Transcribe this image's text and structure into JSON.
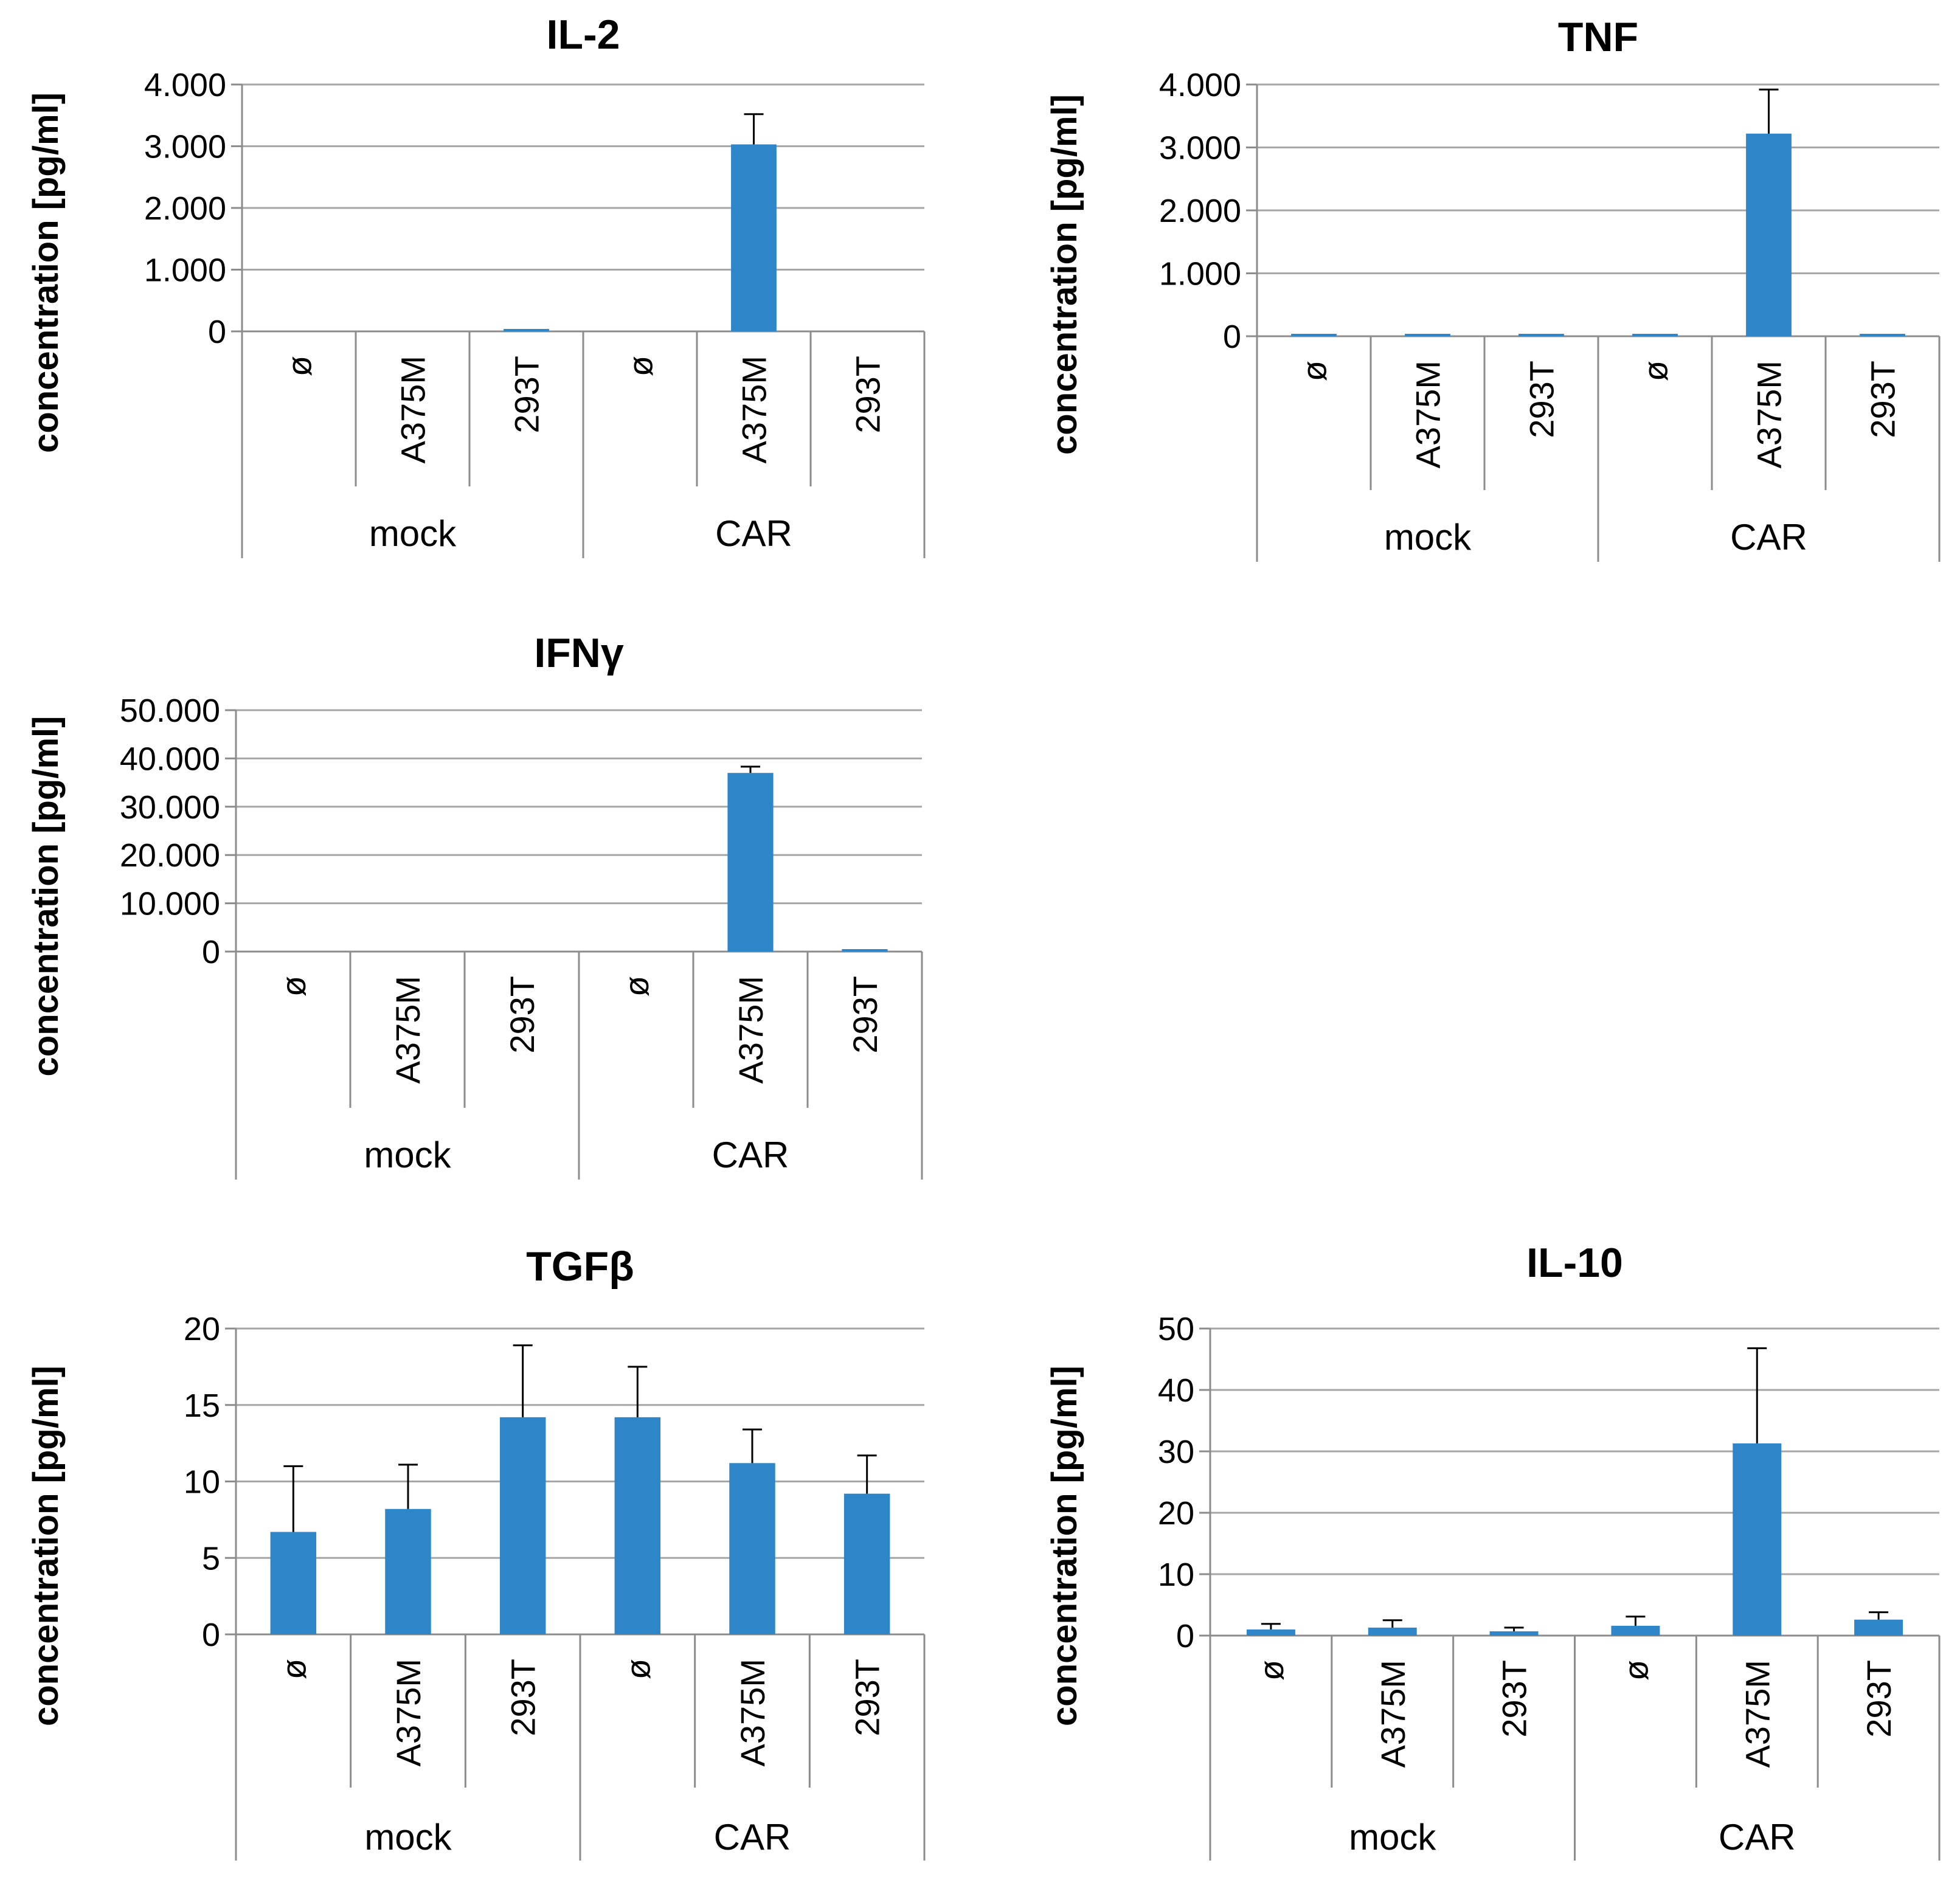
{
  "chart_data": [
    {
      "type": "bar",
      "title": "IL-2",
      "ylabel": "concentration [pg/ml]",
      "xlabel": "",
      "ylim": [
        0,
        4000
      ],
      "yticks": [
        0,
        1000,
        2000,
        3000,
        4000
      ],
      "ytick_labels": [
        "0",
        "1.000",
        "2.000",
        "3.000",
        "4.000"
      ],
      "categories": [
        "ø",
        "A375M",
        "293T",
        "ø",
        "A375M",
        "293T"
      ],
      "groups": [
        {
          "label": "mock",
          "size": 3
        },
        {
          "label": "CAR",
          "size": 3
        }
      ],
      "values": [
        0,
        0,
        20,
        0,
        3030,
        0
      ],
      "errors": [
        0,
        0,
        0,
        0,
        490,
        0
      ],
      "bar_color": "#2e86c8",
      "grid": true
    },
    {
      "type": "bar",
      "title": "TNF",
      "ylabel": "concentration [pg/ml]",
      "xlabel": "",
      "ylim": [
        0,
        4000
      ],
      "yticks": [
        0,
        1000,
        2000,
        3000,
        4000
      ],
      "ytick_labels": [
        "0",
        "1.000",
        "2.000",
        "3.000",
        "4.000"
      ],
      "categories": [
        "ø",
        "A375M",
        "293T",
        "ø",
        "A375M",
        "293T"
      ],
      "groups": [
        {
          "label": "mock",
          "size": 3
        },
        {
          "label": "CAR",
          "size": 3
        }
      ],
      "values": [
        20,
        20,
        20,
        20,
        3220,
        20
      ],
      "errors": [
        0,
        0,
        0,
        0,
        700,
        0
      ],
      "bar_color": "#2e86c8",
      "grid": true
    },
    {
      "type": "bar",
      "title": "IFNγ",
      "ylabel": "concentration [pg/ml]",
      "xlabel": "",
      "ylim": [
        0,
        50000
      ],
      "yticks": [
        0,
        10000,
        20000,
        30000,
        40000,
        50000
      ],
      "ytick_labels": [
        "0",
        "10.000",
        "20.000",
        "30.000",
        "40.000",
        "50.000"
      ],
      "categories": [
        "ø",
        "A375M",
        "293T",
        "ø",
        "A375M",
        "293T"
      ],
      "groups": [
        {
          "label": "mock",
          "size": 3
        },
        {
          "label": "CAR",
          "size": 3
        }
      ],
      "values": [
        0,
        0,
        0,
        0,
        37000,
        200
      ],
      "errors": [
        0,
        0,
        0,
        0,
        1300,
        0
      ],
      "bar_color": "#2e86c8",
      "grid": true
    },
    {
      "type": "bar",
      "title": "TGFβ",
      "ylabel": "concentration [pg/ml]",
      "xlabel": "",
      "ylim": [
        0,
        20
      ],
      "yticks": [
        0,
        5,
        10,
        15,
        20
      ],
      "ytick_labels": [
        "0",
        "5",
        "10",
        "15",
        "20"
      ],
      "categories": [
        "ø",
        "A375M",
        "293T",
        "ø",
        "A375M",
        "293T"
      ],
      "groups": [
        {
          "label": "mock",
          "size": 3
        },
        {
          "label": "CAR",
          "size": 3
        }
      ],
      "values": [
        6.7,
        8.2,
        14.2,
        14.2,
        11.2,
        9.2
      ],
      "errors": [
        4.3,
        2.9,
        4.7,
        3.3,
        2.2,
        2.5
      ],
      "bar_color": "#2e86c8",
      "grid": true
    },
    {
      "type": "bar",
      "title": "IL-10",
      "ylabel": "concentration [pg/ml]",
      "xlabel": "",
      "ylim": [
        0,
        50
      ],
      "yticks": [
        0,
        10,
        20,
        30,
        40,
        50
      ],
      "ytick_labels": [
        "0",
        "10",
        "20",
        "30",
        "40",
        "50"
      ],
      "categories": [
        "ø",
        "A375M",
        "293T",
        "ø",
        "A375M",
        "293T"
      ],
      "groups": [
        {
          "label": "mock",
          "size": 3
        },
        {
          "label": "CAR",
          "size": 3
        }
      ],
      "values": [
        1.0,
        1.3,
        0.7,
        1.6,
        31.3,
        2.6
      ],
      "errors": [
        0.9,
        1.2,
        0.6,
        1.5,
        15.5,
        1.2
      ],
      "bar_color": "#2e86c8",
      "grid": true
    }
  ]
}
